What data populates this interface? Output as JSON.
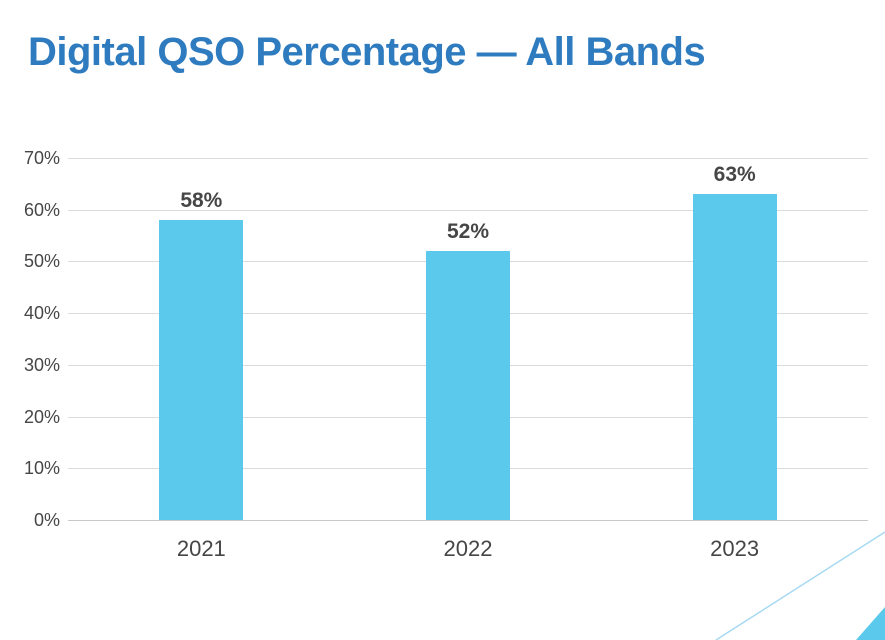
{
  "slide": {
    "title": "Digital QSO Percentage — All Bands"
  },
  "colors": {
    "title_blue": "#2E7CBF",
    "bar_fill": "#5BC9EC",
    "text_gray": "#464646",
    "gridline": "#DBDBDB",
    "axis_line": "#C9C9C9",
    "decor_line": "#A6D9F3",
    "decor_triangle": "#5BC9EC"
  },
  "chart_data": {
    "type": "bar",
    "title": "Digital QSO Percentage — All Bands",
    "categories": [
      "2021",
      "2022",
      "2023"
    ],
    "values": [
      58,
      52,
      63
    ],
    "data_labels": [
      "58%",
      "52%",
      "63%"
    ],
    "xlabel": "",
    "ylabel": "",
    "ylim": [
      0,
      70
    ],
    "ytick_step": 10,
    "ytick_labels": [
      "0%",
      "10%",
      "20%",
      "30%",
      "40%",
      "50%",
      "60%",
      "70%"
    ],
    "grid": true,
    "legend_position": "none"
  }
}
